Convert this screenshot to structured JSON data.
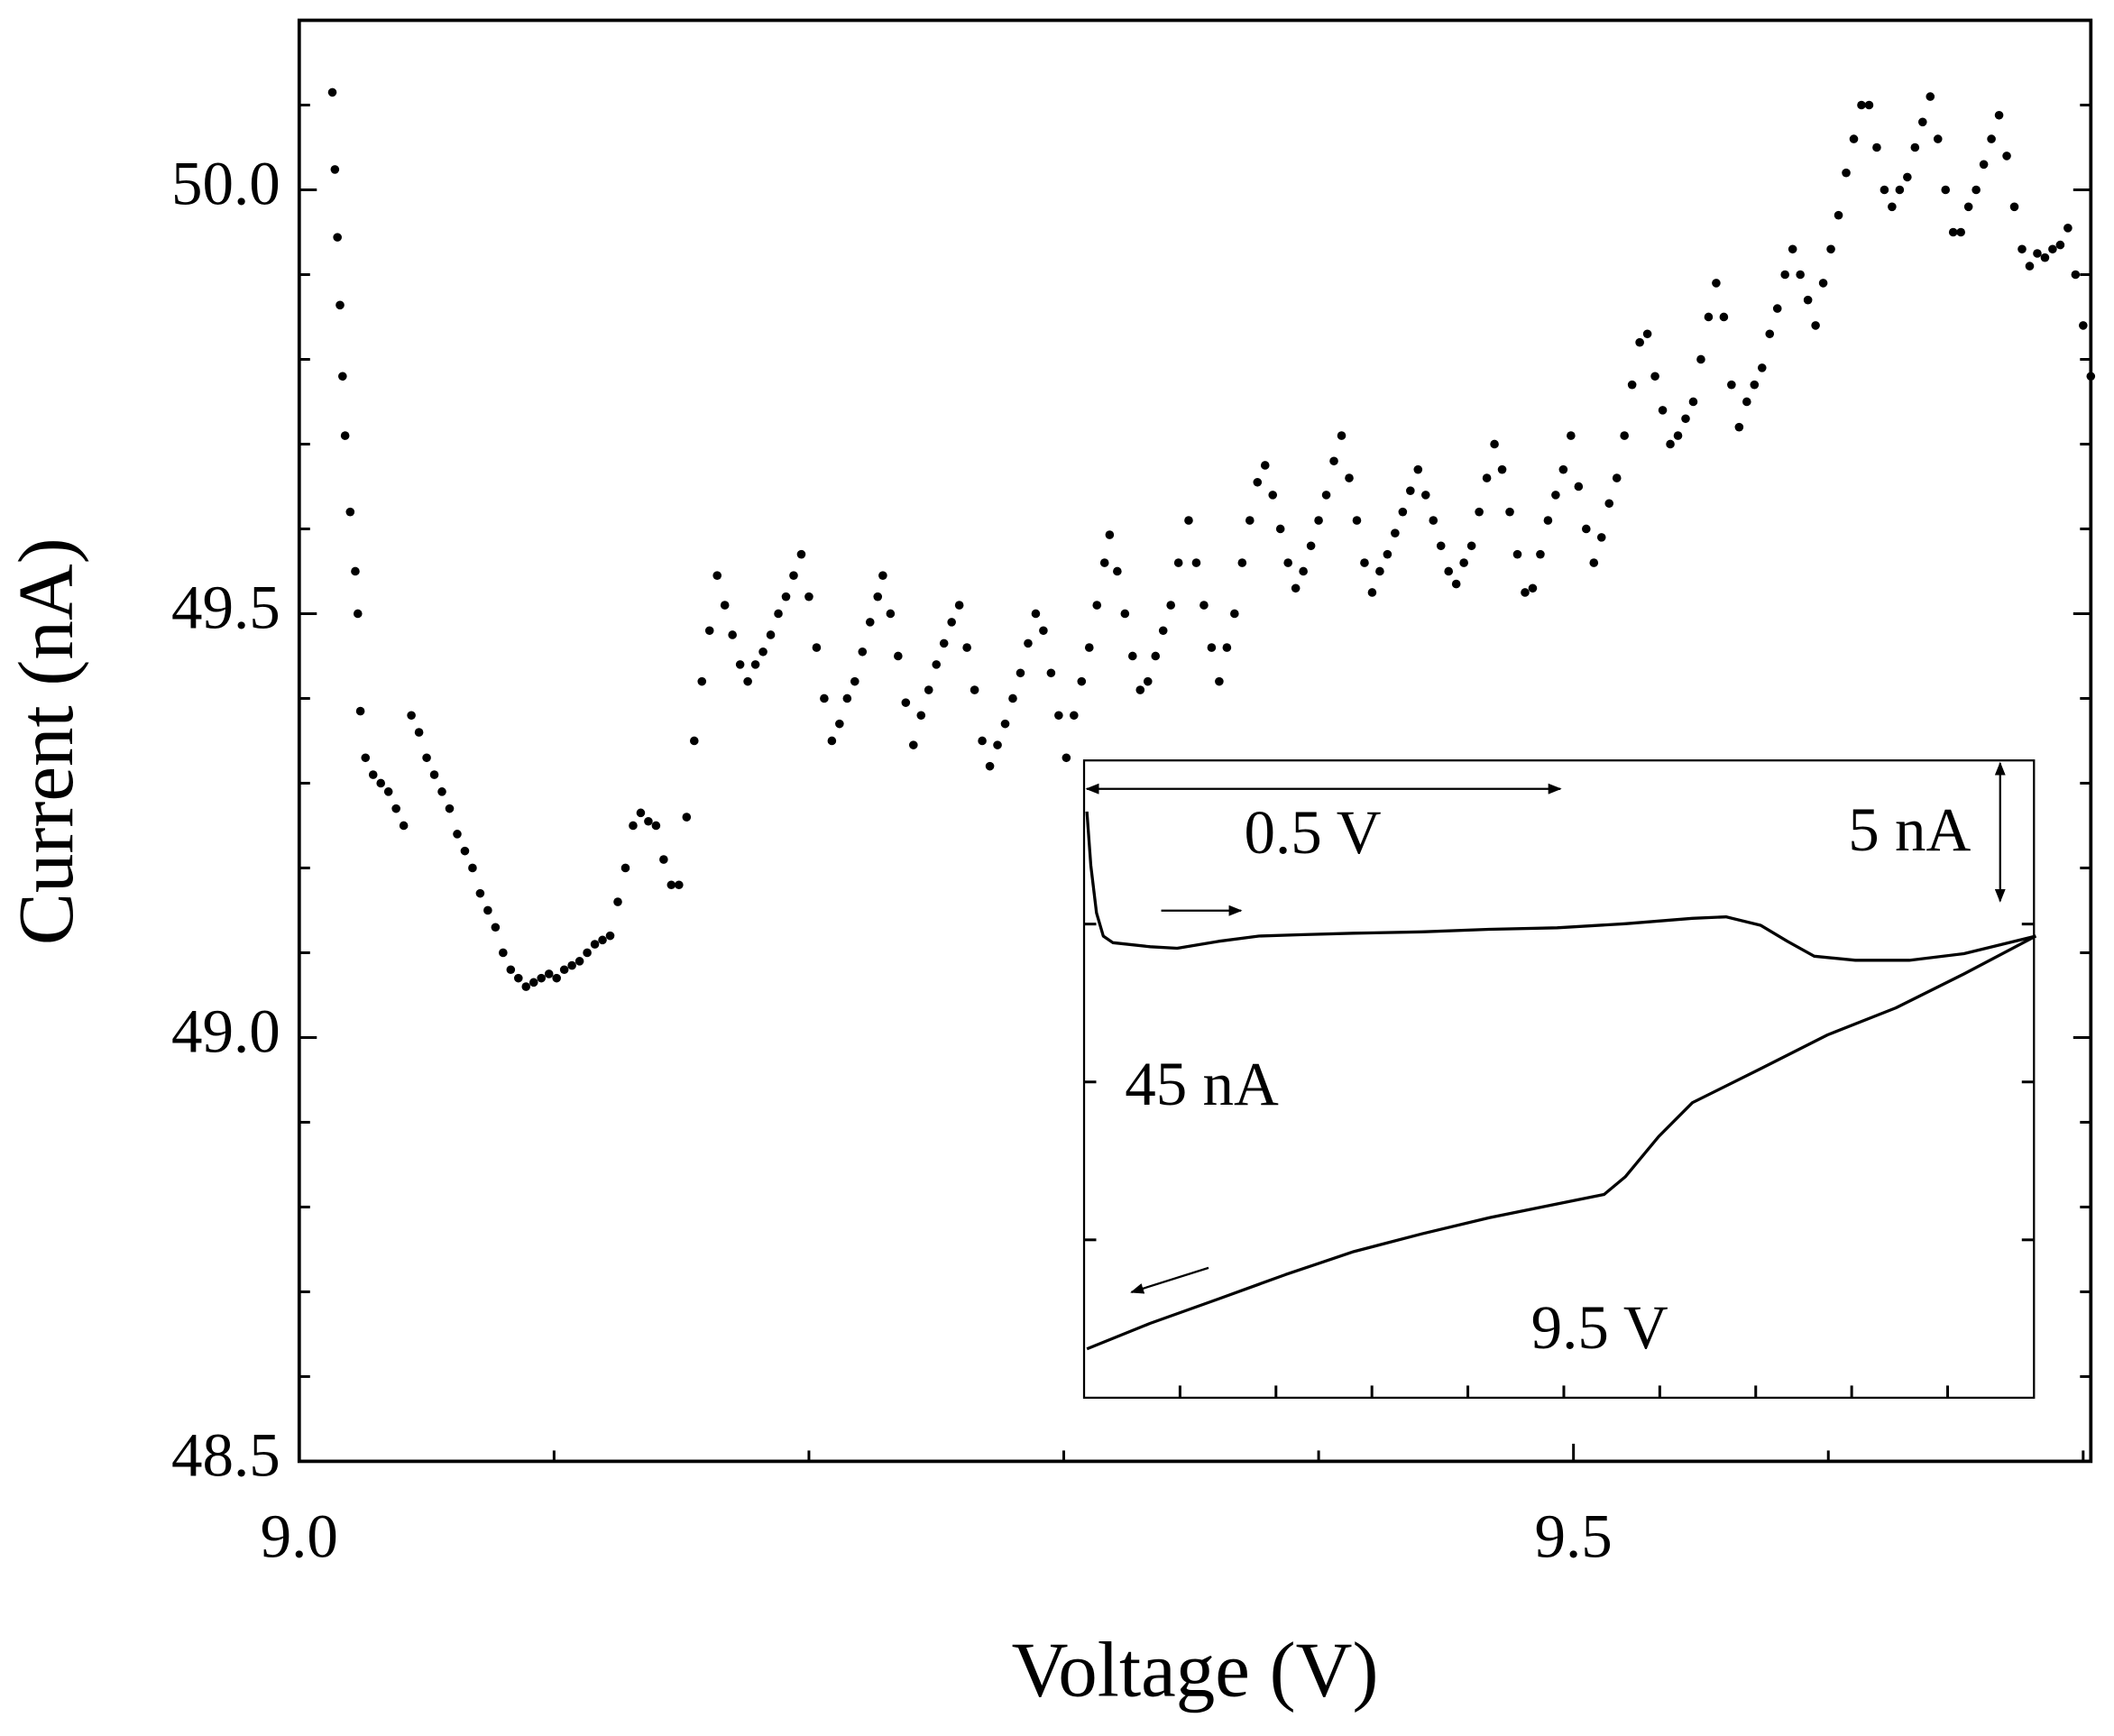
{
  "chart_data": [
    {
      "type": "scatter",
      "x_label": "Voltage (V)",
      "y_label": "Current (nA)",
      "color": "#000000",
      "xlim": [
        9.0,
        9.703
      ],
      "ylim": [
        48.5,
        50.2
      ],
      "xticks": [
        {
          "value": 9,
          "label": "9.0"
        },
        9.5
      ],
      "xminor_ticks": [
        9.1,
        9.2,
        9.3,
        9.4,
        9.6,
        9.7
      ],
      "yticks": [
        48.5,
        {
          "value": 49,
          "label": "49.0"
        },
        49.5,
        {
          "value": 50,
          "label": "50.0"
        }
      ],
      "yminor_ticks": [
        48.6,
        48.7,
        48.8,
        48.9,
        49.1,
        49.2,
        49.3,
        49.4,
        49.6,
        49.7,
        49.8,
        49.9,
        50.1
      ],
      "x": [
        9.013,
        9.014,
        9.015,
        9.016,
        9.017,
        9.018,
        9.02,
        9.022,
        9.023,
        9.024,
        9.026,
        9.029,
        9.032,
        9.035,
        9.038,
        9.041,
        9.044,
        9.047,
        9.05,
        9.053,
        9.056,
        9.059,
        9.062,
        9.065,
        9.068,
        9.071,
        9.074,
        9.077,
        9.08,
        9.083,
        9.086,
        9.089,
        9.092,
        9.095,
        9.098,
        9.101,
        9.104,
        9.107,
        9.11,
        9.113,
        9.116,
        9.119,
        9.122,
        9.125,
        9.128,
        9.131,
        9.134,
        9.137,
        9.14,
        9.143,
        9.146,
        9.149,
        9.152,
        9.155,
        9.158,
        9.161,
        9.164,
        9.167,
        9.17,
        9.173,
        9.176,
        9.179,
        9.182,
        9.185,
        9.188,
        9.191,
        9.194,
        9.197,
        9.2,
        9.203,
        9.206,
        9.209,
        9.212,
        9.215,
        9.218,
        9.221,
        9.224,
        9.227,
        9.229,
        9.232,
        9.235,
        9.238,
        9.241,
        9.244,
        9.247,
        9.25,
        9.253,
        9.256,
        9.259,
        9.262,
        9.265,
        9.268,
        9.271,
        9.274,
        9.277,
        9.28,
        9.283,
        9.286,
        9.289,
        9.292,
        9.295,
        9.298,
        9.301,
        9.304,
        9.307,
        9.31,
        9.313,
        9.316,
        9.318,
        9.321,
        9.324,
        9.327,
        9.33,
        9.333,
        9.336,
        9.339,
        9.342,
        9.345,
        9.349,
        9.352,
        9.355,
        9.358,
        9.361,
        9.364,
        9.367,
        9.37,
        9.373,
        9.376,
        9.379,
        9.382,
        9.385,
        9.388,
        9.391,
        9.394,
        9.397,
        9.4,
        9.403,
        9.406,
        9.409,
        9.412,
        9.415,
        9.418,
        9.421,
        9.424,
        9.427,
        9.43,
        9.433,
        9.436,
        9.439,
        9.442,
        9.445,
        9.448,
        9.451,
        9.454,
        9.457,
        9.46,
        9.463,
        9.466,
        9.469,
        9.472,
        9.475,
        9.478,
        9.481,
        9.484,
        9.487,
        9.49,
        9.493,
        9.496,
        9.499,
        9.502,
        9.505,
        9.508,
        9.511,
        9.514,
        9.517,
        9.52,
        9.523,
        9.526,
        9.529,
        9.532,
        9.535,
        9.538,
        9.541,
        9.544,
        9.547,
        9.55,
        9.553,
        9.556,
        9.559,
        9.562,
        9.565,
        9.568,
        9.571,
        9.574,
        9.577,
        9.58,
        9.583,
        9.586,
        9.589,
        9.592,
        9.595,
        9.598,
        9.601,
        9.604,
        9.607,
        9.61,
        9.613,
        9.616,
        9.619,
        9.622,
        9.625,
        9.628,
        9.631,
        9.634,
        9.637,
        9.64,
        9.643,
        9.646,
        9.649,
        9.652,
        9.655,
        9.658,
        9.661,
        9.664,
        9.667,
        9.67,
        9.673,
        9.676,
        9.679,
        9.682,
        9.685,
        9.688,
        9.691,
        9.694,
        9.697,
        9.7,
        9.703
      ],
      "y": [
        50.115,
        50.024,
        49.944,
        49.864,
        49.78,
        49.71,
        49.62,
        49.55,
        49.5,
        49.385,
        49.33,
        49.31,
        49.3,
        49.29,
        49.27,
        49.25,
        49.38,
        49.36,
        49.33,
        49.31,
        49.29,
        49.27,
        49.24,
        49.22,
        49.2,
        49.17,
        49.15,
        49.13,
        49.1,
        49.08,
        49.07,
        49.06,
        49.065,
        49.07,
        49.075,
        49.07,
        49.08,
        49.085,
        49.09,
        49.1,
        49.11,
        49.115,
        49.12,
        49.16,
        49.2,
        49.25,
        49.265,
        49.255,
        49.25,
        49.21,
        49.18,
        49.18,
        49.26,
        49.35,
        49.42,
        49.48,
        49.545,
        49.51,
        49.475,
        49.44,
        49.42,
        49.44,
        49.455,
        49.475,
        49.5,
        49.52,
        49.545,
        49.57,
        49.52,
        49.46,
        49.4,
        49.35,
        49.37,
        49.4,
        49.42,
        49.455,
        49.49,
        49.52,
        49.545,
        49.5,
        49.45,
        49.395,
        49.345,
        49.38,
        49.41,
        49.44,
        49.465,
        49.49,
        49.51,
        49.46,
        49.41,
        49.35,
        49.32,
        49.345,
        49.37,
        49.4,
        49.43,
        49.465,
        49.5,
        49.48,
        49.43,
        49.38,
        49.33,
        49.38,
        49.42,
        49.46,
        49.51,
        49.56,
        49.593,
        49.55,
        49.5,
        49.45,
        49.41,
        49.42,
        49.45,
        49.48,
        49.51,
        49.56,
        49.61,
        49.56,
        49.51,
        49.46,
        49.42,
        49.46,
        49.5,
        49.56,
        49.61,
        49.655,
        49.675,
        49.64,
        49.6,
        49.56,
        49.53,
        49.55,
        49.58,
        49.61,
        49.64,
        49.68,
        49.71,
        49.66,
        49.61,
        49.56,
        49.525,
        49.55,
        49.57,
        49.595,
        49.62,
        49.645,
        49.67,
        49.64,
        49.61,
        49.58,
        49.55,
        49.535,
        49.56,
        49.58,
        49.62,
        49.66,
        49.7,
        49.67,
        49.62,
        49.57,
        49.525,
        49.53,
        49.57,
        49.61,
        49.64,
        49.67,
        49.71,
        49.65,
        49.6,
        49.56,
        49.59,
        49.63,
        49.66,
        49.71,
        49.77,
        49.82,
        49.83,
        49.78,
        49.74,
        49.7,
        49.71,
        49.73,
        49.75,
        49.8,
        49.85,
        49.89,
        49.85,
        49.77,
        49.72,
        49.75,
        49.77,
        49.79,
        49.83,
        49.86,
        49.9,
        49.93,
        49.9,
        49.87,
        49.84,
        49.89,
        49.93,
        49.97,
        50.02,
        50.06,
        50.1,
        50.1,
        50.05,
        50.0,
        49.98,
        50.0,
        50.015,
        50.05,
        50.08,
        50.11,
        50.06,
        50.0,
        49.95,
        49.95,
        49.98,
        50.0,
        50.03,
        50.06,
        50.088,
        50.04,
        49.98,
        49.93,
        49.91,
        49.925,
        49.92,
        49.93,
        49.935,
        49.955,
        49.9,
        49.84,
        49.78
      ]
    },
    {
      "type": "line",
      "color": "#000000",
      "xlim": [
        0,
        0.99
      ],
      "ylim": [
        0,
        22.2
      ],
      "xticks": [
        0.1,
        0.2,
        0.3,
        0.4,
        0.5,
        0.6,
        0.7,
        0.8,
        0.9
      ],
      "yticks": [
        5.5,
        11,
        16.5
      ],
      "annotations": [
        "0.5 V",
        "5 nA",
        "45 nA",
        "9.5 V"
      ],
      "series": [
        {
          "x": [
            0.003,
            0.007,
            0.013,
            0.02,
            0.03,
            0.069,
            0.097,
            0.14,
            0.182,
            0.225,
            0.281,
            0.352,
            0.422,
            0.493,
            0.564,
            0.634,
            0.669,
            0.705,
            0.733,
            0.761,
            0.804,
            0.86,
            0.917,
            0.992
          ],
          "values": [
            20.42,
            18.54,
            16.89,
            16.08,
            15.85,
            15.71,
            15.66,
            15.9,
            16.08,
            16.13,
            16.18,
            16.23,
            16.32,
            16.37,
            16.51,
            16.7,
            16.75,
            16.46,
            15.9,
            15.38,
            15.24,
            15.24,
            15.47,
            16.08
          ]
        },
        {
          "x": [
            0.992,
            0.917,
            0.846,
            0.775,
            0.705,
            0.634,
            0.599,
            0.564,
            0.542,
            0.493,
            0.422,
            0.352,
            0.281,
            0.21,
            0.14,
            0.069,
            0.003
          ],
          "values": [
            16.08,
            14.76,
            13.58,
            12.64,
            11.46,
            10.28,
            9.1,
            7.69,
            7.08,
            6.75,
            6.27,
            5.71,
            5.09,
            4.29,
            3.44,
            2.59,
            1.7
          ]
        }
      ]
    }
  ]
}
